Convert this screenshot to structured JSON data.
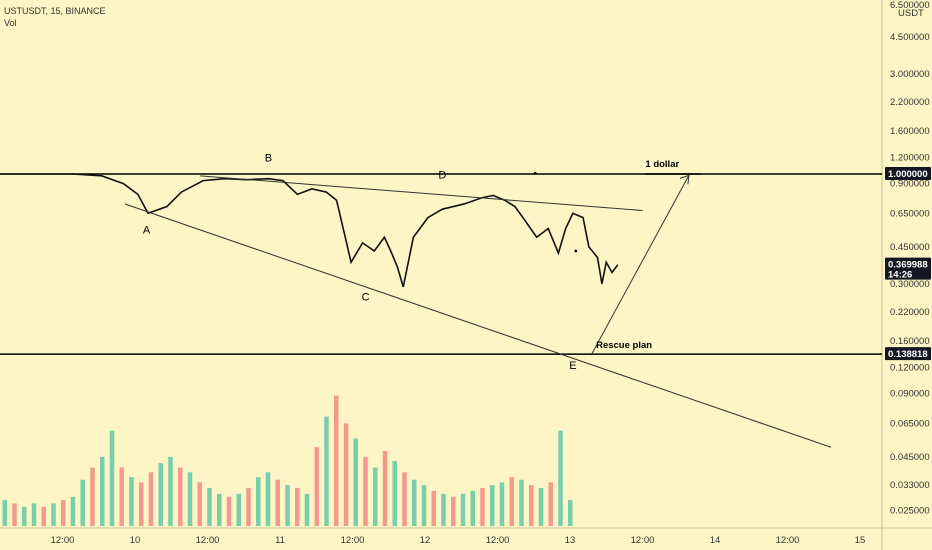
{
  "header": {
    "symbol": "USTUSDT, 15, BINANCE",
    "volume_label": "Vol",
    "currency": "USDT"
  },
  "colors": {
    "background": "#fdf5c5",
    "price_line": "#111111",
    "volume_up": "#5fc8a7",
    "volume_down": "#f08a80",
    "tag_bg": "#131722"
  },
  "chart_data": {
    "type": "line",
    "title": "",
    "y_scale": "log",
    "y_ticks": [
      "6.500000",
      "4.500000",
      "3.000000",
      "2.200000",
      "1.600000",
      "1.200000",
      "0.900000",
      "0.650000",
      "0.450000",
      "0.300000",
      "0.220000",
      "0.160000",
      "0.120000",
      "0.090000",
      "0.065000",
      "0.045000",
      "0.033000",
      "0.025000"
    ],
    "x_ticks": [
      "12:00",
      "10",
      "12:00",
      "11",
      "12:00",
      "12",
      "12:00",
      "13",
      "12:00",
      "14",
      "12:00",
      "15"
    ],
    "price_tags": [
      {
        "value": "1.000000",
        "sub": ""
      },
      {
        "value": "0.369988",
        "sub": "14:26"
      },
      {
        "value": "0.138818",
        "sub": ""
      }
    ],
    "horizontal_levels": [
      1.0,
      0.138818
    ],
    "annotations": {
      "waves": [
        "A",
        "B",
        "C",
        "D",
        "E"
      ],
      "target_label": "1 dollar",
      "plan_label": "Rescue plan"
    },
    "price_series": [
      [
        0.0,
        1.0
      ],
      [
        0.5,
        1.0
      ],
      [
        0.7,
        0.98
      ],
      [
        0.85,
        0.9
      ],
      [
        0.95,
        0.8
      ],
      [
        1.02,
        0.65
      ],
      [
        1.15,
        0.7
      ],
      [
        1.25,
        0.82
      ],
      [
        1.4,
        0.93
      ],
      [
        1.55,
        0.95
      ],
      [
        1.7,
        0.94
      ],
      [
        1.85,
        0.95
      ],
      [
        1.95,
        0.93
      ],
      [
        2.05,
        0.8
      ],
      [
        2.15,
        0.85
      ],
      [
        2.25,
        0.82
      ],
      [
        2.32,
        0.75
      ],
      [
        2.38,
        0.5
      ],
      [
        2.42,
        0.38
      ],
      [
        2.5,
        0.47
      ],
      [
        2.58,
        0.43
      ],
      [
        2.65,
        0.5
      ],
      [
        2.7,
        0.42
      ],
      [
        2.74,
        0.36
      ],
      [
        2.78,
        0.29
      ],
      [
        2.85,
        0.5
      ],
      [
        2.95,
        0.62
      ],
      [
        3.05,
        0.68
      ],
      [
        3.2,
        0.72
      ],
      [
        3.32,
        0.77
      ],
      [
        3.4,
        0.79
      ],
      [
        3.48,
        0.75
      ],
      [
        3.55,
        0.7
      ],
      [
        3.62,
        0.6
      ],
      [
        3.7,
        0.5
      ],
      [
        3.78,
        0.55
      ],
      [
        3.85,
        0.42
      ],
      [
        3.9,
        0.55
      ],
      [
        3.95,
        0.65
      ],
      [
        4.02,
        0.62
      ],
      [
        4.06,
        0.45
      ],
      [
        4.12,
        0.4
      ],
      [
        4.15,
        0.3
      ],
      [
        4.18,
        0.38
      ],
      [
        4.22,
        0.34
      ],
      [
        4.26,
        0.37
      ]
    ],
    "volume_series": [
      0.028,
      0.027,
      0.026,
      0.027,
      0.026,
      0.027,
      0.028,
      0.029,
      0.035,
      0.04,
      0.045,
      0.06,
      0.04,
      0.036,
      0.034,
      0.038,
      0.042,
      0.045,
      0.04,
      0.038,
      0.034,
      0.032,
      0.03,
      0.029,
      0.03,
      0.032,
      0.036,
      0.038,
      0.035,
      0.033,
      0.032,
      0.03,
      0.05,
      0.07,
      0.088,
      0.065,
      0.055,
      0.045,
      0.04,
      0.048,
      0.043,
      0.038,
      0.035,
      0.033,
      0.031,
      0.03,
      0.029,
      0.03,
      0.031,
      0.032,
      0.033,
      0.034,
      0.036,
      0.035,
      0.033,
      0.032,
      0.034,
      0.06,
      0.028
    ],
    "volume_direction": [
      1,
      0,
      1,
      1,
      0,
      1,
      0,
      1,
      1,
      0,
      1,
      1,
      0,
      1,
      0,
      0,
      1,
      1,
      0,
      1,
      0,
      1,
      1,
      0,
      1,
      0,
      1,
      1,
      0,
      1,
      0,
      1,
      0,
      1,
      0,
      0,
      1,
      0,
      1,
      0,
      1,
      0,
      1,
      1,
      0,
      1,
      0,
      1,
      1,
      0,
      1,
      1,
      0,
      1,
      0,
      1,
      0,
      1,
      1
    ],
    "ylim": [
      0.022,
      7.0
    ],
    "xlim_days": [
      -0.35,
      6.2
    ],
    "grid": false,
    "legend": "none"
  }
}
